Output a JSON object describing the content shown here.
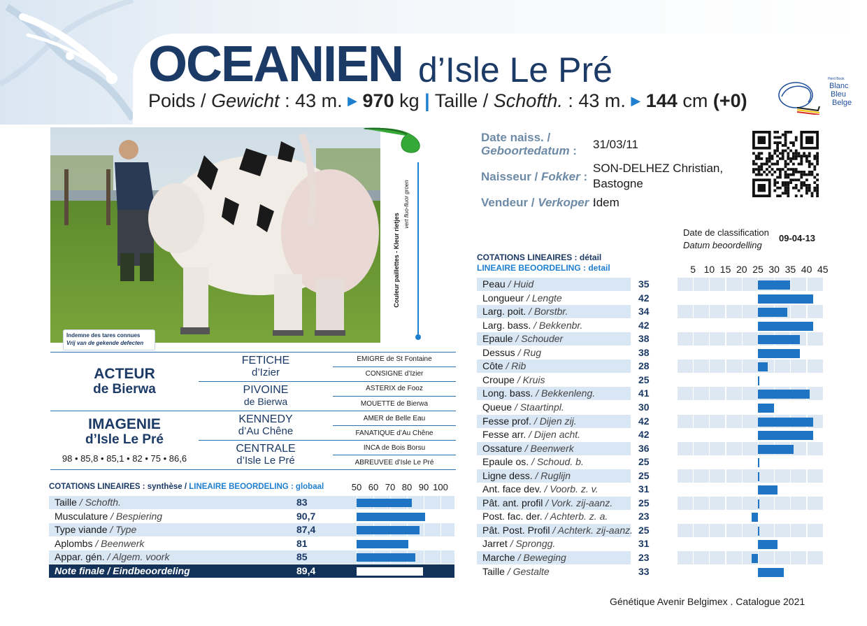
{
  "title": {
    "name": "OCEANIEN",
    "suffix": "d’Isle Le Pré"
  },
  "subtitle": {
    "poids_fr": "Poids /",
    "poids_nl": "Gewicht",
    "poids_age": ": 43 m.",
    "poids_value": "970",
    "poids_unit": "kg",
    "separator": "|",
    "taille_fr": "Taille /",
    "taille_nl": "Schofth.",
    "taille_age": ": 43 m.",
    "taille_value": "144",
    "taille_unit": "cm",
    "taille_extra": "(+0)"
  },
  "herdbook": {
    "small": "Herd Book",
    "line1": "Blanc",
    "line2": "Bleu",
    "line3": "Belge"
  },
  "photo": {
    "defects_fr": "Indemne des tares connues",
    "defects_nl": "Vrij van de gekende defecten"
  },
  "straws": {
    "label_fr": "Couleur paillettes - Kleur rietjes",
    "label_nl": "vert fluo-fluor groen"
  },
  "info": {
    "birth_label_fr": "Date naiss. /",
    "birth_label_nl": "Geboortedatum",
    "birth_value": "31/03/11",
    "breeder_label_fr": "Naisseur /",
    "breeder_label_nl": "Fokker",
    "breeder_value_1": "SON-DELHEZ Christian,",
    "breeder_value_2": "Bastogne",
    "seller_label_fr": "Vendeur /",
    "seller_label_nl": "Verkoper",
    "seller_value": "Idem"
  },
  "classification": {
    "label_fr": "Date de classification",
    "label_nl": "Datum beoordelling",
    "value": "09-04-13"
  },
  "pedigree": {
    "sire_1": "ACTEUR",
    "sire_2": "de Bierwa",
    "dam_1": "IMAGENIE",
    "dam_2": "d’Isle Le Pré",
    "dam_scores": "98 • 85,8 • 85,1 • 82 • 75 • 86,6",
    "gp": [
      {
        "l1": "FETICHE",
        "l2": "d’Izier"
      },
      {
        "l1": "PIVOINE",
        "l2": "de Bierwa"
      },
      {
        "l1": "KENNEDY",
        "l2": "d’Au Chêne"
      },
      {
        "l1": "CENTRALE",
        "l2": "d’Isle Le Pré"
      }
    ],
    "ggp": [
      "EMIGRE de St Fontaine",
      "CONSIGNE d’Izier",
      "ASTERIX de Fooz",
      "MOUETTE de Bierwa",
      "AMER de Belle Eau",
      "FANATIQUE d’Au Chêne",
      "INCA de Bois Borsu",
      "ABREUVEE d’Isle Le Pré"
    ]
  },
  "synthesis": {
    "header_fr": "COTATIONS LINEAIRES : synthèse /",
    "header_nl": "LINEAIRE BEOORDELING : globaal",
    "scale": [
      "50",
      "60",
      "70",
      "80",
      "90",
      "100"
    ],
    "rows": [
      {
        "fr": "Taille",
        "nl": "/ Schofth.",
        "value": "83",
        "num": 83
      },
      {
        "fr": "Musculature",
        "nl": "/ Bespiering",
        "value": "90,7",
        "num": 90.7
      },
      {
        "fr": "Type viande",
        "nl": "/ Type",
        "value": "87,4",
        "num": 87.4
      },
      {
        "fr": "Aplombs",
        "nl": "/ Beenwerk",
        "value": "81",
        "num": 81
      },
      {
        "fr": "Appar. gén.",
        "nl": "/ Algem. voork",
        "value": "85",
        "num": 85
      }
    ],
    "final": {
      "fr": "Note finale",
      "nl": "/ Eindbeoordeling",
      "value": "89,4",
      "num": 89.4
    }
  },
  "detail": {
    "header_fr": "COTATIONS LINEAIRES : détail",
    "header_nl": "LINEAIRE BEOORDELING : detail",
    "scale": [
      "5",
      "10",
      "15",
      "20",
      "25",
      "30",
      "35",
      "40",
      "45"
    ],
    "rows": [
      {
        "fr": "Peau",
        "nl": "/ Huid",
        "value": "35",
        "num": 35
      },
      {
        "fr": "Longueur",
        "nl": "/ Lengte",
        "value": "42",
        "num": 42
      },
      {
        "fr": "Larg. poit.",
        "nl": "/ Borstbr.",
        "value": "34",
        "num": 34
      },
      {
        "fr": "Larg. bass.",
        "nl": "/ Bekkenbr.",
        "value": "42",
        "num": 42
      },
      {
        "fr": "Epaule",
        "nl": "/ Schouder",
        "value": "38",
        "num": 38
      },
      {
        "fr": "Dessus",
        "nl": "/ Rug",
        "value": "38",
        "num": 38
      },
      {
        "fr": "Côte",
        "nl": "/ Rib",
        "value": "28",
        "num": 28
      },
      {
        "fr": "Croupe",
        "nl": "/ Kruis",
        "value": "25",
        "num": 25
      },
      {
        "fr": "Long. bass.",
        "nl": "/ Bekkenleng.",
        "value": "41",
        "num": 41
      },
      {
        "fr": "Queue",
        "nl": "/ Staartinpl.",
        "value": "30",
        "num": 30
      },
      {
        "fr": "Fesse prof.",
        "nl": "/ Dijen zij.",
        "value": "42",
        "num": 42
      },
      {
        "fr": "Fesse arr.",
        "nl": "/ Dijen acht.",
        "value": "42",
        "num": 42
      },
      {
        "fr": "Ossature",
        "nl": "/ Beenwerk",
        "value": "36",
        "num": 36
      },
      {
        "fr": "Epaule os.",
        "nl": "/ Schoud. b.",
        "value": "25",
        "num": 25
      },
      {
        "fr": "Ligne dess.",
        "nl": "/ Ruglijn",
        "value": "25",
        "num": 25
      },
      {
        "fr": "Ant. face dev.",
        "nl": "/ Voorb. z. v.",
        "value": "31",
        "num": 31
      },
      {
        "fr": "Pât. ant. profil",
        "nl": "/ Vork. zij-aanz.",
        "value": "25",
        "num": 25
      },
      {
        "fr": "Post. fac. der.",
        "nl": "/ Achterb. z. a.",
        "value": "23",
        "num": 23
      },
      {
        "fr": "Pât. Post. Profil",
        "nl": "/ Achterk. zij-aanz.",
        "value": "25",
        "num": 25
      },
      {
        "fr": "Jarret",
        "nl": "/ Sprongg.",
        "value": "31",
        "num": 31
      },
      {
        "fr": "Marche",
        "nl": "/ Beweging",
        "value": "23",
        "num": 23
      },
      {
        "fr": "Taille",
        "nl": "/ Gestalte",
        "value": "33",
        "num": 33
      }
    ]
  },
  "footer": "Génétique Avenir Belgimex . Catalogue 2021",
  "colors": {
    "navy": "#1c3a66",
    "accent_blue": "#1f7fcf",
    "bar_blue": "#1f74c4",
    "row_shade": "#d9e6f4",
    "leaf_green": "#35a838"
  }
}
